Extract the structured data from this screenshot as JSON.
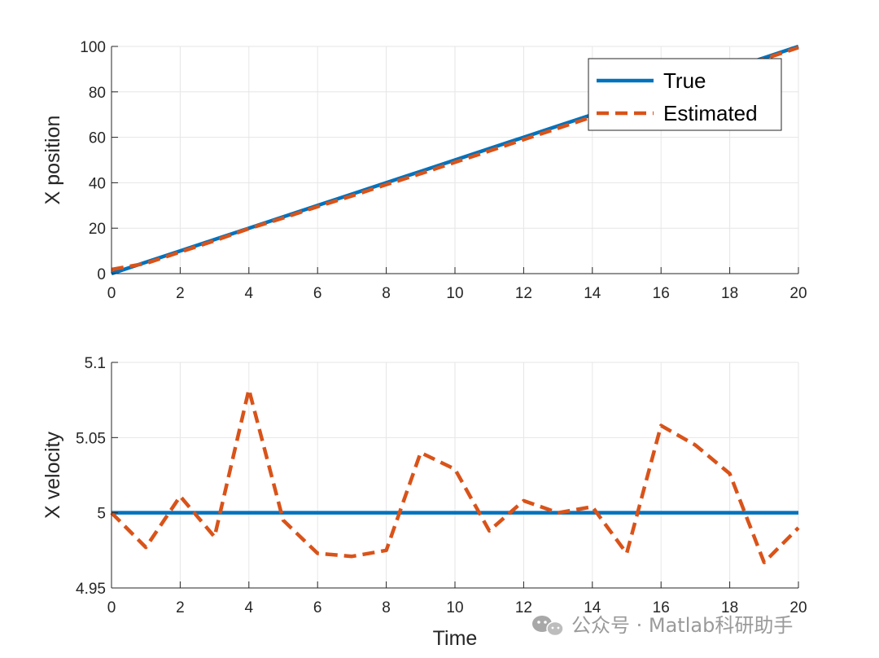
{
  "colors": {
    "true_series": "#0072BD",
    "estimated_series": "#D95319",
    "axis": "#262626",
    "grid": "#E6E6E6"
  },
  "watermark": {
    "text": "公众号 · Matlab科研助手",
    "icon": "wechat-icon"
  },
  "chart_data": [
    {
      "type": "line",
      "title": "",
      "xlabel": "",
      "ylabel": "X position",
      "xlim": [
        0,
        20
      ],
      "ylim": [
        0,
        100
      ],
      "xticks": [
        "0",
        "2",
        "4",
        "6",
        "8",
        "10",
        "12",
        "14",
        "16",
        "18",
        "20"
      ],
      "yticks": [
        "0",
        "20",
        "40",
        "60",
        "80",
        "100"
      ],
      "grid": true,
      "legend": {
        "placement": "top-right",
        "entries": [
          "True",
          "Estimated"
        ]
      },
      "series": [
        {
          "name": "True",
          "style": "solid",
          "x": [
            0,
            1,
            2,
            3,
            4,
            5,
            6,
            7,
            8,
            9,
            10,
            11,
            12,
            13,
            14,
            15,
            16,
            17,
            18,
            19,
            20
          ],
          "y": [
            0,
            5,
            10,
            15,
            20,
            25,
            30,
            35,
            40,
            45,
            50,
            55,
            60,
            65,
            70,
            75,
            80,
            85,
            90,
            95,
            100
          ]
        },
        {
          "name": "Estimated",
          "style": "dashed",
          "x": [
            0,
            1,
            2,
            3,
            4,
            5,
            6,
            7,
            8,
            9,
            10,
            11,
            12,
            13,
            14,
            15,
            16,
            17,
            18,
            19,
            20
          ],
          "y": [
            1.8,
            4.5,
            9.5,
            14.5,
            19.8,
            24.5,
            29.5,
            34.2,
            39.2,
            44,
            49,
            54,
            59,
            64,
            69,
            74,
            79,
            84.2,
            89.5,
            94.5,
            99.5
          ]
        }
      ]
    },
    {
      "type": "line",
      "title": "",
      "xlabel": "Time",
      "ylabel": "X velocity",
      "xlim": [
        0,
        20
      ],
      "ylim": [
        4.95,
        5.1
      ],
      "xticks": [
        "0",
        "2",
        "4",
        "6",
        "8",
        "10",
        "12",
        "14",
        "16",
        "18",
        "20"
      ],
      "yticks": [
        "4.95",
        "5",
        "5.05",
        "5.1"
      ],
      "grid": true,
      "series": [
        {
          "name": "True",
          "style": "solid",
          "x": [
            0,
            20
          ],
          "y": [
            5,
            5
          ]
        },
        {
          "name": "Estimated",
          "style": "dashed",
          "x": [
            0,
            1,
            2,
            3,
            4,
            5,
            6,
            7,
            8,
            9,
            10,
            11,
            12,
            13,
            14,
            15,
            16,
            17,
            18,
            19,
            20
          ],
          "y": [
            5.0,
            4.977,
            5.011,
            4.984,
            5.082,
            4.995,
            4.973,
            4.971,
            4.975,
            5.04,
            5.029,
            4.988,
            5.008,
            5.0,
            5.004,
            4.973,
            5.058,
            5.045,
            5.026,
            4.967,
            4.99
          ]
        }
      ]
    }
  ]
}
